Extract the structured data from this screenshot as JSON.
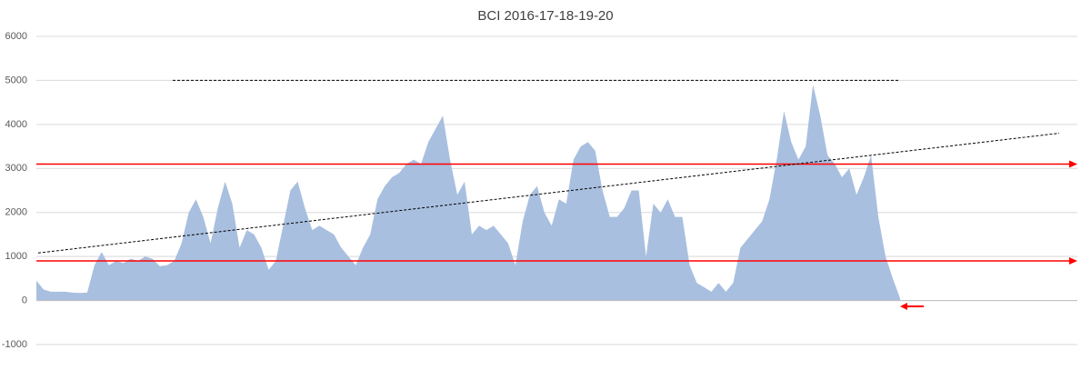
{
  "chart_data": {
    "type": "area",
    "title": "BCI 2016-17-18-19-20",
    "color": "#a9bfdf",
    "values": [
      450,
      250,
      200,
      200,
      200,
      180,
      170,
      180,
      800,
      1100,
      800,
      900,
      850,
      950,
      900,
      1000,
      950,
      780,
      800,
      900,
      1300,
      2000,
      2300,
      1900,
      1300,
      2100,
      2700,
      2200,
      1200,
      1600,
      1500,
      1200,
      700,
      900,
      1700,
      2500,
      2700,
      2100,
      1600,
      1700,
      1600,
      1500,
      1200,
      1000,
      800,
      1200,
      1500,
      2300,
      2600,
      2800,
      2900,
      3100,
      3200,
      3100,
      3600,
      3900,
      4200,
      3200,
      2400,
      2700,
      1500,
      1700,
      1600,
      1700,
      1500,
      1300,
      800,
      1800,
      2400,
      2600,
      2000,
      1700,
      2300,
      2200,
      3200,
      3500,
      3600,
      3400,
      2500,
      1900,
      1900,
      2100,
      2500,
      2500,
      1000,
      2200,
      2000,
      2300,
      1900,
      1900,
      800,
      400,
      300,
      200,
      400,
      200,
      400,
      1200,
      1400,
      1600,
      1800,
      2300,
      3200,
      4300,
      3600,
      3200,
      3500,
      4900,
      4200,
      3300,
      3100,
      2800,
      3000,
      2400,
      2800,
      3300,
      1900,
      1000,
      500,
      50
    ],
    "ylim": [
      -1000,
      6000
    ],
    "yticks": [
      -1000,
      0,
      1000,
      2000,
      3000,
      4000,
      5000,
      6000
    ],
    "grid": true,
    "reference_lines": [
      {
        "value": 3100,
        "color": "#ff0000"
      },
      {
        "value": 900,
        "color": "#ff0000"
      }
    ],
    "dashed_level": 5000,
    "trendline": {
      "start": 1080,
      "end": 3800
    }
  }
}
